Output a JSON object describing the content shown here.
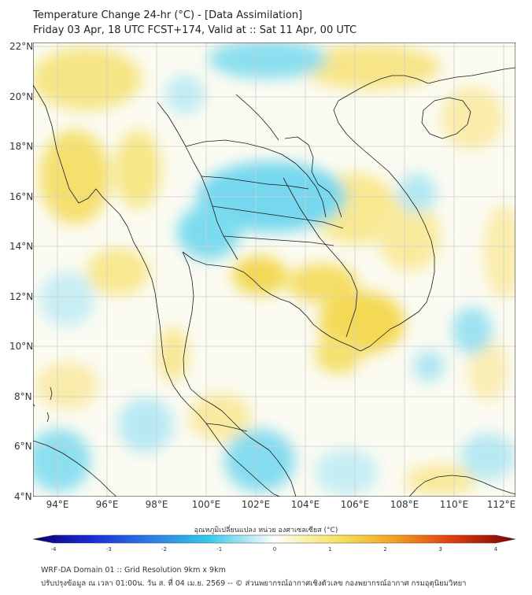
{
  "header": {
    "title": "Temperature Change 24-hr (°C) - [Data Assimilation]",
    "subtitle": "Friday 03 Apr, 18 UTC FCST+174, Valid at :: Sat 11 Apr, 00 UTC"
  },
  "axes": {
    "lat_labels": [
      "22°N",
      "20°N",
      "18°N",
      "16°N",
      "14°N",
      "12°N",
      "10°N",
      "8°N",
      "6°N",
      "4°N"
    ],
    "lon_labels": [
      "94°E",
      "96°E",
      "98°E",
      "100°E",
      "102°E",
      "104°E",
      "106°E",
      "108°E",
      "110°E",
      "112°E"
    ]
  },
  "colorbar": {
    "label": "อุณหภูมิเปลี่ยนแปลง หน่วย องศาเซลเซียส (°C)",
    "ticks": [
      "-4",
      "-3",
      "-2",
      "-1",
      "0",
      "1",
      "2",
      "3",
      "4"
    ],
    "min": -4,
    "max": 4
  },
  "footer": {
    "line1": "WRF-DA Domain 01 :: Grid Resolution 9km x 9km",
    "line2": "ปรับปรุงข้อมูล ณ เวลา 01:00น. วัน ส. ที่ 04 เม.ย. 2569 -- © ส่วนพยากรณ์อากาศเชิงตัวเลข กองพยากรณ์อากาศ กรมอุตุนิยมวิทยา"
  },
  "colors": {
    "warm": "#f7e27a",
    "cool": "#7fdcf0",
    "coast": "#1a1a1a",
    "grid": "#cfcfcf"
  }
}
